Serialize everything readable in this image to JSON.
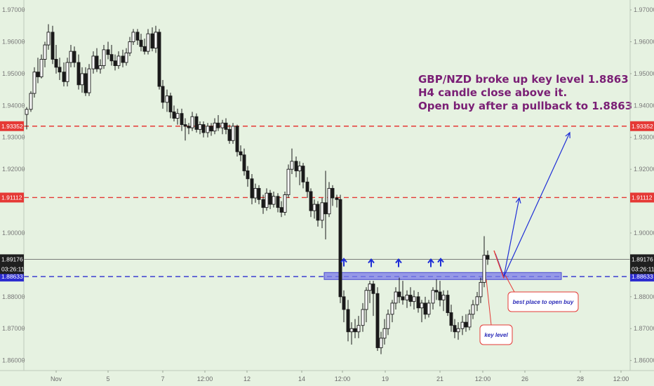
{
  "chart_data": {
    "type": "candlestick",
    "title": "",
    "pair": "GBP/NZD",
    "ylim": [
      1.8575,
      1.972
    ],
    "y_ticks": [
      "1.97000",
      "1.96000",
      "1.95000",
      "1.94000",
      "1.93000",
      "1.92000",
      "1.90000",
      "1.88000",
      "1.87000",
      "1.86000"
    ],
    "x_ticks": [
      "Nov",
      "5",
      "7",
      "12:00",
      "12",
      "14",
      "12:00",
      "19",
      "21",
      "12:00",
      "26",
      "28",
      "12:00"
    ],
    "levels": [
      {
        "name": "resistance-1",
        "value": 1.93352,
        "label": "1.93352",
        "color": "#e53935",
        "style": "dashed"
      },
      {
        "name": "resistance-2",
        "value": 1.91112,
        "label": "1.91112",
        "color": "#e53935",
        "style": "dashed"
      },
      {
        "name": "key-level",
        "value": 1.88633,
        "label": "1.88633",
        "color": "#2c2cd0",
        "style": "dashed"
      }
    ],
    "current_price": {
      "value": 1.89176,
      "label": "1.89176",
      "countdown": "03:26:11"
    },
    "support_zone": {
      "low": 1.8854,
      "high": 1.8876,
      "color": "#7b7be8"
    },
    "candles": [
      {
        "x": 38,
        "o": 1.9372,
        "h": 1.9395,
        "l": 1.9325,
        "c": 1.9388
      },
      {
        "x": 44,
        "o": 1.9388,
        "h": 1.9445,
        "l": 1.938,
        "c": 1.9438
      },
      {
        "x": 49,
        "o": 1.9438,
        "h": 1.952,
        "l": 1.9425,
        "c": 1.9505
      },
      {
        "x": 54,
        "o": 1.9505,
        "h": 1.955,
        "l": 1.947,
        "c": 1.949
      },
      {
        "x": 59,
        "o": 1.949,
        "h": 1.956,
        "l": 1.9485,
        "c": 1.9545
      },
      {
        "x": 64,
        "o": 1.9545,
        "h": 1.96,
        "l": 1.952,
        "c": 1.959
      },
      {
        "x": 69,
        "o": 1.959,
        "h": 1.9655,
        "l": 1.9575,
        "c": 1.963
      },
      {
        "x": 75,
        "o": 1.963,
        "h": 1.965,
        "l": 1.953,
        "c": 1.9545
      },
      {
        "x": 80,
        "o": 1.9545,
        "h": 1.959,
        "l": 1.95,
        "c": 1.952
      },
      {
        "x": 85,
        "o": 1.952,
        "h": 1.955,
        "l": 1.948,
        "c": 1.9505
      },
      {
        "x": 91,
        "o": 1.9505,
        "h": 1.9535,
        "l": 1.946,
        "c": 1.9475
      },
      {
        "x": 96,
        "o": 1.9475,
        "h": 1.955,
        "l": 1.946,
        "c": 1.9535
      },
      {
        "x": 101,
        "o": 1.9535,
        "h": 1.959,
        "l": 1.952,
        "c": 1.957
      },
      {
        "x": 106,
        "o": 1.957,
        "h": 1.9585,
        "l": 1.952,
        "c": 1.9535
      },
      {
        "x": 112,
        "o": 1.9535,
        "h": 1.956,
        "l": 1.945,
        "c": 1.9465
      },
      {
        "x": 117,
        "o": 1.9465,
        "h": 1.952,
        "l": 1.944,
        "c": 1.95
      },
      {
        "x": 122,
        "o": 1.95,
        "h": 1.952,
        "l": 1.943,
        "c": 1.944
      },
      {
        "x": 127,
        "o": 1.944,
        "h": 1.953,
        "l": 1.943,
        "c": 1.9515
      },
      {
        "x": 133,
        "o": 1.9515,
        "h": 1.957,
        "l": 1.95,
        "c": 1.9555
      },
      {
        "x": 138,
        "o": 1.9555,
        "h": 1.958,
        "l": 1.9505,
        "c": 1.9515
      },
      {
        "x": 143,
        "o": 1.9515,
        "h": 1.9545,
        "l": 1.95,
        "c": 1.9525
      },
      {
        "x": 148,
        "o": 1.9525,
        "h": 1.959,
        "l": 1.9515,
        "c": 1.9575
      },
      {
        "x": 154,
        "o": 1.9575,
        "h": 1.96,
        "l": 1.9545,
        "c": 1.956
      },
      {
        "x": 159,
        "o": 1.956,
        "h": 1.959,
        "l": 1.9525,
        "c": 1.954
      },
      {
        "x": 164,
        "o": 1.954,
        "h": 1.956,
        "l": 1.951,
        "c": 1.9525
      },
      {
        "x": 169,
        "o": 1.9525,
        "h": 1.957,
        "l": 1.9515,
        "c": 1.9555
      },
      {
        "x": 175,
        "o": 1.9555,
        "h": 1.9575,
        "l": 1.952,
        "c": 1.9535
      },
      {
        "x": 180,
        "o": 1.9535,
        "h": 1.958,
        "l": 1.9525,
        "c": 1.9565
      },
      {
        "x": 185,
        "o": 1.9565,
        "h": 1.9615,
        "l": 1.9555,
        "c": 1.96
      },
      {
        "x": 190,
        "o": 1.96,
        "h": 1.964,
        "l": 1.959,
        "c": 1.963
      },
      {
        "x": 196,
        "o": 1.963,
        "h": 1.964,
        "l": 1.959,
        "c": 1.9605
      },
      {
        "x": 201,
        "o": 1.9605,
        "h": 1.9625,
        "l": 1.957,
        "c": 1.9585
      },
      {
        "x": 206,
        "o": 1.9585,
        "h": 1.961,
        "l": 1.956,
        "c": 1.957
      },
      {
        "x": 211,
        "o": 1.957,
        "h": 1.964,
        "l": 1.956,
        "c": 1.9625
      },
      {
        "x": 217,
        "o": 1.9625,
        "h": 1.9645,
        "l": 1.957,
        "c": 1.958
      },
      {
        "x": 222,
        "o": 1.958,
        "h": 1.965,
        "l": 1.9565,
        "c": 1.963
      },
      {
        "x": 227,
        "o": 1.963,
        "h": 1.964,
        "l": 1.945,
        "c": 1.946
      },
      {
        "x": 232,
        "o": 1.946,
        "h": 1.948,
        "l": 1.939,
        "c": 1.941
      },
      {
        "x": 238,
        "o": 1.941,
        "h": 1.945,
        "l": 1.938,
        "c": 1.943
      },
      {
        "x": 243,
        "o": 1.943,
        "h": 1.944,
        "l": 1.936,
        "c": 1.938
      },
      {
        "x": 248,
        "o": 1.938,
        "h": 1.94,
        "l": 1.935,
        "c": 1.936
      },
      {
        "x": 253,
        "o": 1.936,
        "h": 1.939,
        "l": 1.934,
        "c": 1.9375
      },
      {
        "x": 259,
        "o": 1.9375,
        "h": 1.939,
        "l": 1.932,
        "c": 1.934
      },
      {
        "x": 264,
        "o": 1.934,
        "h": 1.936,
        "l": 1.929,
        "c": 1.9335
      },
      {
        "x": 269,
        "o": 1.9335,
        "h": 1.9345,
        "l": 1.931,
        "c": 1.933
      },
      {
        "x": 274,
        "o": 1.933,
        "h": 1.938,
        "l": 1.932,
        "c": 1.9365
      },
      {
        "x": 280,
        "o": 1.9365,
        "h": 1.9375,
        "l": 1.9315,
        "c": 1.9325
      },
      {
        "x": 285,
        "o": 1.9325,
        "h": 1.935,
        "l": 1.931,
        "c": 1.934
      },
      {
        "x": 290,
        "o": 1.934,
        "h": 1.935,
        "l": 1.93,
        "c": 1.9315
      },
      {
        "x": 296,
        "o": 1.9315,
        "h": 1.9345,
        "l": 1.93,
        "c": 1.9335
      },
      {
        "x": 301,
        "o": 1.9335,
        "h": 1.9345,
        "l": 1.9305,
        "c": 1.932
      },
      {
        "x": 306,
        "o": 1.932,
        "h": 1.936,
        "l": 1.931,
        "c": 1.9345
      },
      {
        "x": 311,
        "o": 1.9345,
        "h": 1.937,
        "l": 1.932,
        "c": 1.933
      },
      {
        "x": 317,
        "o": 1.933,
        "h": 1.9355,
        "l": 1.931,
        "c": 1.9345
      },
      {
        "x": 322,
        "o": 1.9345,
        "h": 1.936,
        "l": 1.931,
        "c": 1.9325
      },
      {
        "x": 327,
        "o": 1.9325,
        "h": 1.934,
        "l": 1.928,
        "c": 1.929
      },
      {
        "x": 332,
        "o": 1.929,
        "h": 1.9345,
        "l": 1.928,
        "c": 1.9335
      },
      {
        "x": 338,
        "o": 1.9335,
        "h": 1.934,
        "l": 1.924,
        "c": 1.9255
      },
      {
        "x": 343,
        "o": 1.9255,
        "h": 1.9275,
        "l": 1.9225,
        "c": 1.9245
      },
      {
        "x": 348,
        "o": 1.9245,
        "h": 1.9265,
        "l": 1.918,
        "c": 1.9195
      },
      {
        "x": 353,
        "o": 1.9195,
        "h": 1.921,
        "l": 1.9145,
        "c": 1.917
      },
      {
        "x": 359,
        "o": 1.917,
        "h": 1.9185,
        "l": 1.909,
        "c": 1.911
      },
      {
        "x": 364,
        "o": 1.911,
        "h": 1.9155,
        "l": 1.9095,
        "c": 1.914
      },
      {
        "x": 369,
        "o": 1.914,
        "h": 1.915,
        "l": 1.909,
        "c": 1.9105
      },
      {
        "x": 375,
        "o": 1.9105,
        "h": 1.912,
        "l": 1.906,
        "c": 1.908
      },
      {
        "x": 380,
        "o": 1.908,
        "h": 1.914,
        "l": 1.907,
        "c": 1.9125
      },
      {
        "x": 385,
        "o": 1.9125,
        "h": 1.9135,
        "l": 1.9075,
        "c": 1.909
      },
      {
        "x": 390,
        "o": 1.909,
        "h": 1.913,
        "l": 1.908,
        "c": 1.9115
      },
      {
        "x": 396,
        "o": 1.9115,
        "h": 1.9125,
        "l": 1.9065,
        "c": 1.908
      },
      {
        "x": 401,
        "o": 1.908,
        "h": 1.91,
        "l": 1.905,
        "c": 1.9065
      },
      {
        "x": 406,
        "o": 1.9065,
        "h": 1.913,
        "l": 1.9055,
        "c": 1.912
      },
      {
        "x": 411,
        "o": 1.912,
        "h": 1.9215,
        "l": 1.911,
        "c": 1.92
      },
      {
        "x": 416,
        "o": 1.92,
        "h": 1.9265,
        "l": 1.9185,
        "c": 1.9225
      },
      {
        "x": 422,
        "o": 1.9225,
        "h": 1.924,
        "l": 1.9175,
        "c": 1.9195
      },
      {
        "x": 427,
        "o": 1.9195,
        "h": 1.9225,
        "l": 1.915,
        "c": 1.921
      },
      {
        "x": 432,
        "o": 1.921,
        "h": 1.922,
        "l": 1.914,
        "c": 1.916
      },
      {
        "x": 438,
        "o": 1.916,
        "h": 1.9175,
        "l": 1.911,
        "c": 1.913
      },
      {
        "x": 443,
        "o": 1.913,
        "h": 1.914,
        "l": 1.905,
        "c": 1.907
      },
      {
        "x": 448,
        "o": 1.907,
        "h": 1.9105,
        "l": 1.9045,
        "c": 1.909
      },
      {
        "x": 453,
        "o": 1.909,
        "h": 1.91,
        "l": 1.902,
        "c": 1.904
      },
      {
        "x": 459,
        "o": 1.904,
        "h": 1.911,
        "l": 1.9015,
        "c": 1.9095
      },
      {
        "x": 464,
        "o": 1.9095,
        "h": 1.9195,
        "l": 1.898,
        "c": 1.906
      },
      {
        "x": 469,
        "o": 1.906,
        "h": 1.916,
        "l": 1.905,
        "c": 1.914
      },
      {
        "x": 474,
        "o": 1.914,
        "h": 1.915,
        "l": 1.9085,
        "c": 1.911
      },
      {
        "x": 480,
        "o": 1.911,
        "h": 1.912,
        "l": 1.908,
        "c": 1.9105
      },
      {
        "x": 485,
        "o": 1.9105,
        "h": 1.912,
        "l": 1.878,
        "c": 1.88
      },
      {
        "x": 490,
        "o": 1.88,
        "h": 1.882,
        "l": 1.872,
        "c": 1.876
      },
      {
        "x": 496,
        "o": 1.876,
        "h": 1.879,
        "l": 1.866,
        "c": 1.869
      },
      {
        "x": 501,
        "o": 1.869,
        "h": 1.872,
        "l": 1.865,
        "c": 1.87
      },
      {
        "x": 506,
        "o": 1.87,
        "h": 1.873,
        "l": 1.867,
        "c": 1.869
      },
      {
        "x": 511,
        "o": 1.869,
        "h": 1.874,
        "l": 1.867,
        "c": 1.871
      },
      {
        "x": 517,
        "o": 1.871,
        "h": 1.878,
        "l": 1.869,
        "c": 1.876
      },
      {
        "x": 522,
        "o": 1.876,
        "h": 1.883,
        "l": 1.872,
        "c": 1.882
      },
      {
        "x": 527,
        "o": 1.882,
        "h": 1.885,
        "l": 1.878,
        "c": 1.884
      },
      {
        "x": 532,
        "o": 1.884,
        "h": 1.885,
        "l": 1.874,
        "c": 1.881
      },
      {
        "x": 538,
        "o": 1.881,
        "h": 1.883,
        "l": 1.863,
        "c": 1.864
      },
      {
        "x": 543,
        "o": 1.864,
        "h": 1.869,
        "l": 1.862,
        "c": 1.867
      },
      {
        "x": 548,
        "o": 1.867,
        "h": 1.873,
        "l": 1.865,
        "c": 1.87
      },
      {
        "x": 553,
        "o": 1.87,
        "h": 1.876,
        "l": 1.868,
        "c": 1.8745
      },
      {
        "x": 559,
        "o": 1.8745,
        "h": 1.879,
        "l": 1.872,
        "c": 1.878
      },
      {
        "x": 564,
        "o": 1.878,
        "h": 1.883,
        "l": 1.876,
        "c": 1.8815
      },
      {
        "x": 569,
        "o": 1.8815,
        "h": 1.886,
        "l": 1.878,
        "c": 1.88
      },
      {
        "x": 574,
        "o": 1.88,
        "h": 1.885,
        "l": 1.8775,
        "c": 1.879
      },
      {
        "x": 580,
        "o": 1.879,
        "h": 1.882,
        "l": 1.8765,
        "c": 1.8805
      },
      {
        "x": 585,
        "o": 1.8805,
        "h": 1.883,
        "l": 1.877,
        "c": 1.8785
      },
      {
        "x": 590,
        "o": 1.8785,
        "h": 1.882,
        "l": 1.876,
        "c": 1.88
      },
      {
        "x": 596,
        "o": 1.88,
        "h": 1.8815,
        "l": 1.875,
        "c": 1.8765
      },
      {
        "x": 601,
        "o": 1.8765,
        "h": 1.879,
        "l": 1.872,
        "c": 1.878
      },
      {
        "x": 606,
        "o": 1.878,
        "h": 1.88,
        "l": 1.873,
        "c": 1.8745
      },
      {
        "x": 611,
        "o": 1.8745,
        "h": 1.879,
        "l": 1.8735,
        "c": 1.878
      },
      {
        "x": 617,
        "o": 1.878,
        "h": 1.883,
        "l": 1.876,
        "c": 1.882
      },
      {
        "x": 622,
        "o": 1.882,
        "h": 1.8855,
        "l": 1.879,
        "c": 1.8815
      },
      {
        "x": 627,
        "o": 1.8815,
        "h": 1.885,
        "l": 1.877,
        "c": 1.879
      },
      {
        "x": 632,
        "o": 1.879,
        "h": 1.882,
        "l": 1.8755,
        "c": 1.8805
      },
      {
        "x": 638,
        "o": 1.8805,
        "h": 1.882,
        "l": 1.874,
        "c": 1.875
      },
      {
        "x": 643,
        "o": 1.875,
        "h": 1.8775,
        "l": 1.869,
        "c": 1.871
      },
      {
        "x": 648,
        "o": 1.871,
        "h": 1.873,
        "l": 1.867,
        "c": 1.869
      },
      {
        "x": 653,
        "o": 1.869,
        "h": 1.872,
        "l": 1.8665,
        "c": 1.87
      },
      {
        "x": 659,
        "o": 1.87,
        "h": 1.874,
        "l": 1.868,
        "c": 1.872
      },
      {
        "x": 664,
        "o": 1.872,
        "h": 1.8745,
        "l": 1.869,
        "c": 1.8705
      },
      {
        "x": 669,
        "o": 1.8705,
        "h": 1.876,
        "l": 1.8695,
        "c": 1.8745
      },
      {
        "x": 674,
        "o": 1.8745,
        "h": 1.879,
        "l": 1.873,
        "c": 1.8775
      },
      {
        "x": 680,
        "o": 1.8775,
        "h": 1.8815,
        "l": 1.8755,
        "c": 1.88
      },
      {
        "x": 685,
        "o": 1.88,
        "h": 1.886,
        "l": 1.878,
        "c": 1.8845
      },
      {
        "x": 690,
        "o": 1.8845,
        "h": 1.899,
        "l": 1.883,
        "c": 1.893
      },
      {
        "x": 695,
        "o": 1.893,
        "h": 1.8945,
        "l": 1.89,
        "c": 1.89176
      }
    ],
    "projection_arrows": [
      {
        "name": "arrow-to-1.91112",
        "path": [
          [
            706,
            1.8935
          ],
          [
            718,
            1.8863
          ],
          [
            740,
            1.911
          ]
        ]
      },
      {
        "name": "arrow-to-1.93352",
        "path": [
          [
            718,
            1.8863
          ],
          [
            812,
            1.9315
          ]
        ]
      }
    ],
    "bounce_marks": [
      {
        "x": 490,
        "y": 1.8895
      },
      {
        "x": 529,
        "y": 1.8893
      },
      {
        "x": 568,
        "y": 1.8893
      },
      {
        "x": 614,
        "y": 1.8893
      },
      {
        "x": 628,
        "y": 1.8895
      }
    ],
    "annotations": {
      "headline": [
        "GBP/NZD broke up key level 1.8863",
        "H4 candle close above it.",
        "Open buy after a pullback to 1.8863"
      ],
      "best_place": "best place to open buy",
      "key_level": "key level"
    }
  }
}
